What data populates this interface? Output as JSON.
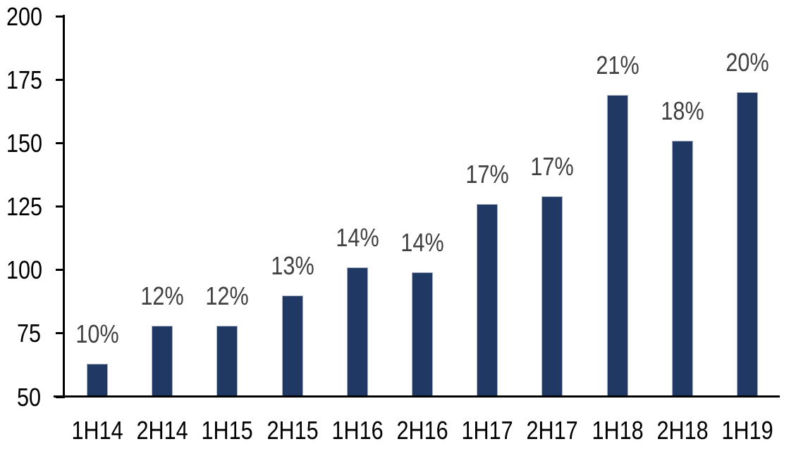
{
  "chart_data": {
    "type": "bar",
    "title": "",
    "categories": [
      "1H14",
      "2H14",
      "1H15",
      "2H15",
      "1H16",
      "2H16",
      "1H17",
      "2H17",
      "1H18",
      "2H18",
      "1H19"
    ],
    "values": [
      63,
      78,
      78,
      90,
      101,
      99,
      126,
      129,
      169,
      151,
      170
    ],
    "bar_labels": [
      "10%",
      "12%",
      "12%",
      "13%",
      "14%",
      "14%",
      "17%",
      "17%",
      "21%",
      "18%",
      "20%"
    ],
    "ylim": [
      50,
      200
    ],
    "yticks": [
      "200",
      "175",
      "150",
      "125",
      "100",
      "75",
      "50"
    ],
    "ytick_values": [
      200,
      175,
      150,
      125,
      100,
      75,
      50
    ],
    "grid": false,
    "legend": "none",
    "bar_color": "#1f3864",
    "bar_border_color": "#a9b3c4",
    "data_label_color": "#404040",
    "axis_label_color": "#000000",
    "axis_line_color": "#000000",
    "background": "#ffffff"
  }
}
